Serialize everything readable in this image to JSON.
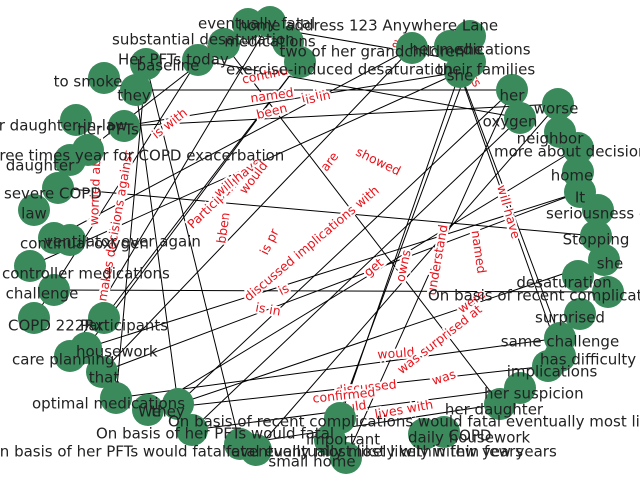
{
  "colors": {
    "node_fill": "#3a8a5c",
    "edge": "#000000",
    "edge_label": "#e8141c",
    "background": "#ffffff",
    "node_text": "#222222"
  },
  "graph": {
    "nodes": [
      {
        "id": "n1",
        "label": "two of her grandchildren"
      },
      {
        "id": "n2",
        "label": "she"
      },
      {
        "id": "n3",
        "label": "her"
      },
      {
        "id": "n4",
        "label": "oxygen"
      },
      {
        "id": "n5",
        "label": "worse"
      },
      {
        "id": "n6",
        "label": "neighbor"
      },
      {
        "id": "n7",
        "label": "more about decisions"
      },
      {
        "id": "n8",
        "label": "home"
      },
      {
        "id": "n9",
        "label": "It"
      },
      {
        "id": "n10",
        "label": "seriousness of it"
      },
      {
        "id": "n11",
        "label": "Stopping"
      },
      {
        "id": "n12",
        "label": "she"
      },
      {
        "id": "n13",
        "label": "desaturation"
      },
      {
        "id": "n14",
        "label": "On basis of recent complications"
      },
      {
        "id": "n15",
        "label": "surprised"
      },
      {
        "id": "n16",
        "label": "same challenge"
      },
      {
        "id": "n17",
        "label": "has difficulty"
      },
      {
        "id": "n18",
        "label": "implications"
      },
      {
        "id": "n19",
        "label": "her suspicion"
      },
      {
        "id": "n20",
        "label": "her daughter"
      },
      {
        "id": "n21",
        "label": "On basis of recent complications would fatal eventually most likely"
      },
      {
        "id": "n22",
        "label": "COPD"
      },
      {
        "id": "n23",
        "label": "daily housework"
      },
      {
        "id": "n24",
        "label": "important"
      },
      {
        "id": "n25",
        "label": "small home"
      },
      {
        "id": "n26",
        "label": "fatal eventually most likely within few years"
      },
      {
        "id": "n27",
        "label": "On basis of her PFTs would fatal eventually most likely within few years"
      },
      {
        "id": "n28",
        "label": "On basis of her PFTs would fatal"
      },
      {
        "id": "n29",
        "label": "We"
      },
      {
        "id": "n30",
        "label": "they"
      },
      {
        "id": "n31",
        "label": "optimal medications"
      },
      {
        "id": "n32",
        "label": "that"
      },
      {
        "id": "n33",
        "label": "housework"
      },
      {
        "id": "n34",
        "label": "care planning"
      },
      {
        "id": "n35",
        "label": "Participants"
      },
      {
        "id": "n36",
        "label": "COPD 222Rx"
      },
      {
        "id": "n37",
        "label": "challenge"
      },
      {
        "id": "n38",
        "label": "controller medications"
      },
      {
        "id": "n39",
        "label": "ventilator ever again"
      },
      {
        "id": "n40",
        "label": "continual oxygen"
      },
      {
        "id": "n41",
        "label": "law"
      },
      {
        "id": "n42",
        "label": "severe COPD"
      },
      {
        "id": "n43",
        "label": "daughter"
      },
      {
        "id": "n44",
        "label": "three times year for COPD exacerbation"
      },
      {
        "id": "n45",
        "label": "her daughter-in-law"
      },
      {
        "id": "n46",
        "label": "her PFTs"
      },
      {
        "id": "n47",
        "label": "they"
      },
      {
        "id": "n48",
        "label": "to smoke"
      },
      {
        "id": "n49",
        "label": "Her PFTs today"
      },
      {
        "id": "n50",
        "label": "baseline"
      },
      {
        "id": "n51",
        "label": "substantial desaturation"
      },
      {
        "id": "n52",
        "label": "eventually fatal"
      },
      {
        "id": "n53",
        "label": "exercise-induced desaturation"
      },
      {
        "id": "n54",
        "label": "home address 123 Anywhere Lane"
      },
      {
        "id": "n55",
        "label": "medications"
      },
      {
        "id": "n56",
        "label": "their families"
      },
      {
        "id": "n57",
        "label": "she"
      },
      {
        "id": "n58",
        "label": "her medications"
      }
    ],
    "edges": [
      {
        "label": "continues"
      },
      {
        "label": "named"
      },
      {
        "label": "is in"
      },
      {
        "label": "been"
      },
      {
        "label": "is with"
      },
      {
        "label": "was"
      },
      {
        "label": "are"
      },
      {
        "label": "visits"
      },
      {
        "label": "Participants in"
      },
      {
        "label": "will have"
      },
      {
        "label": "are"
      },
      {
        "label": "showed"
      },
      {
        "label": "is in"
      },
      {
        "label": "would"
      },
      {
        "label": "been"
      },
      {
        "label": "is pr"
      },
      {
        "label": "discussed implications with"
      },
      {
        "label": "will have"
      },
      {
        "label": "named"
      },
      {
        "label": "understand"
      },
      {
        "label": "owns"
      },
      {
        "label": "get"
      },
      {
        "label": "is"
      },
      {
        "label": "is in"
      },
      {
        "label": "were"
      },
      {
        "label": "makes decisions against"
      },
      {
        "label": "worried about"
      },
      {
        "label": "be"
      },
      {
        "label": "would"
      },
      {
        "label": "was surprised at"
      },
      {
        "label": "discussed"
      },
      {
        "label": "was"
      },
      {
        "label": "confirmed"
      },
      {
        "label": "would"
      },
      {
        "label": "lives with"
      }
    ]
  }
}
